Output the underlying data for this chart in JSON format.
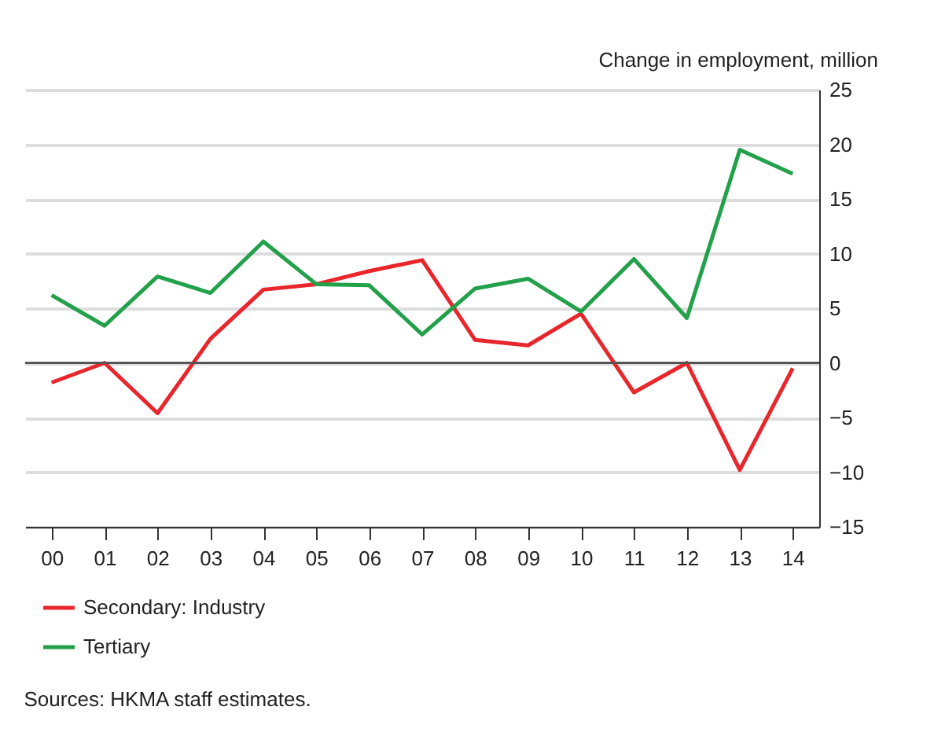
{
  "chart_data": {
    "type": "line",
    "ylabel": "Change in employment, million",
    "categories": [
      "00",
      "01",
      "02",
      "03",
      "04",
      "05",
      "06",
      "07",
      "08",
      "09",
      "10",
      "11",
      "12",
      "13",
      "14"
    ],
    "series": [
      {
        "name": "Secondary: Industry",
        "color": "#e8262b",
        "values": [
          -1.8,
          0,
          -4.6,
          2.2,
          6.7,
          7.2,
          8.4,
          9.4,
          2.1,
          1.6,
          4.5,
          -2.7,
          0,
          -9.8,
          -0.5
        ]
      },
      {
        "name": "Tertiary",
        "color": "#22a04a",
        "values": [
          6.2,
          3.4,
          7.9,
          6.4,
          11.1,
          7.2,
          7.1,
          2.6,
          6.8,
          7.7,
          4.7,
          9.5,
          4.1,
          19.5,
          17.3
        ]
      }
    ],
    "ylim": [
      -15,
      25
    ],
    "yticks": [
      -15,
      -10,
      -5,
      0,
      5,
      10,
      15,
      20,
      25
    ],
    "grid": "y",
    "legend": "bottom left",
    "ref_lines": [
      {
        "axis": "y",
        "value": 0,
        "color": "#555555"
      }
    ],
    "annotations": [
      "Sources: HKMA staff estimates."
    ]
  }
}
